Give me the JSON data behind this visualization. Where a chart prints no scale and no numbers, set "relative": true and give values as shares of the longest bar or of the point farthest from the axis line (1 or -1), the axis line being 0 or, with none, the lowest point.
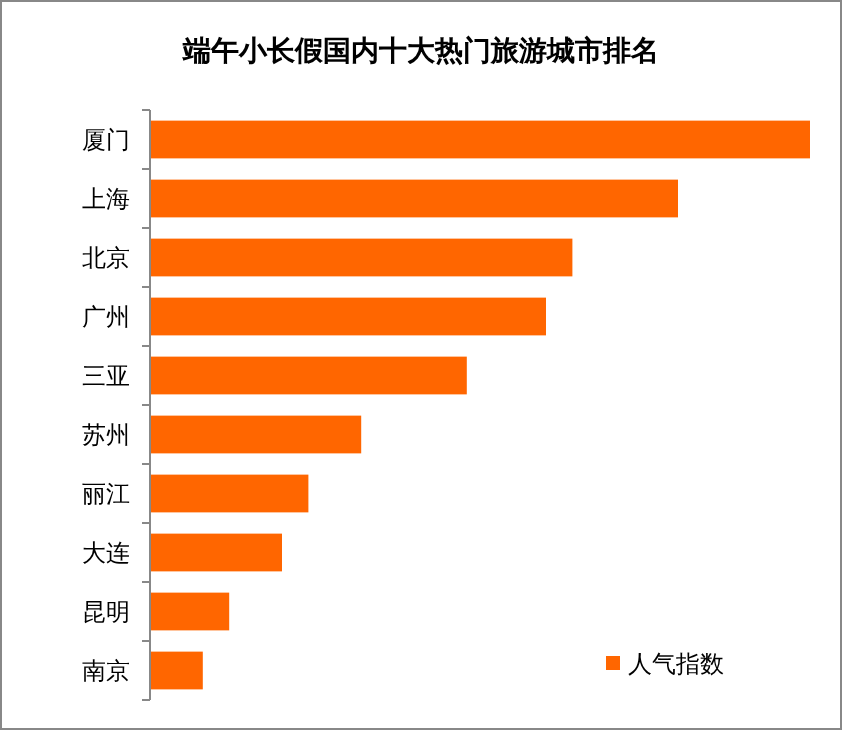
{
  "chart_data": {
    "type": "bar",
    "title": "端午小长假国内十大热门旅游城市排名",
    "orientation": "horizontal",
    "relative": true,
    "legend": "bottom right",
    "categories": [
      "厦门",
      "上海",
      "北京",
      "广州",
      "三亚",
      "苏州",
      "丽江",
      "大连",
      "昆明",
      "南京"
    ],
    "series": [
      {
        "name": "人气指数",
        "color": "#ff6600",
        "values": [
          1,
          0.8,
          0.64,
          0.6,
          0.48,
          0.32,
          0.24,
          0.2,
          0.12,
          0.08
        ]
      }
    ]
  }
}
